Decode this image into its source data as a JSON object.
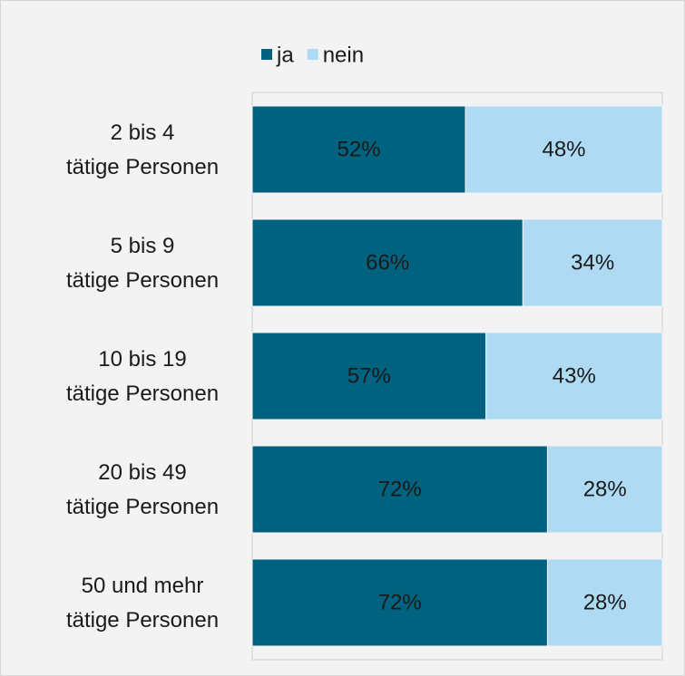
{
  "chart_data": {
    "type": "stacked-bar-horizontal",
    "categories": [
      "2 bis 4\ntätige Personen",
      "5 bis 9\ntätige Personen",
      "10 bis 19\ntätige Personen",
      "20 bis 49\ntätige Personen",
      "50 und mehr\ntätige Personen"
    ],
    "series": [
      {
        "name": "ja",
        "color": "#00627f",
        "values": [
          52,
          66,
          57,
          72,
          72
        ],
        "value_labels": [
          "52%",
          "66%",
          "57%",
          "72%",
          "72%"
        ]
      },
      {
        "name": "nein",
        "color": "#aedbf3",
        "values": [
          48,
          34,
          43,
          28,
          28
        ],
        "value_labels": [
          "48%",
          "34%",
          "43%",
          "28%",
          "28%"
        ]
      }
    ],
    "xlim": [
      0,
      100
    ],
    "legend": "top"
  }
}
